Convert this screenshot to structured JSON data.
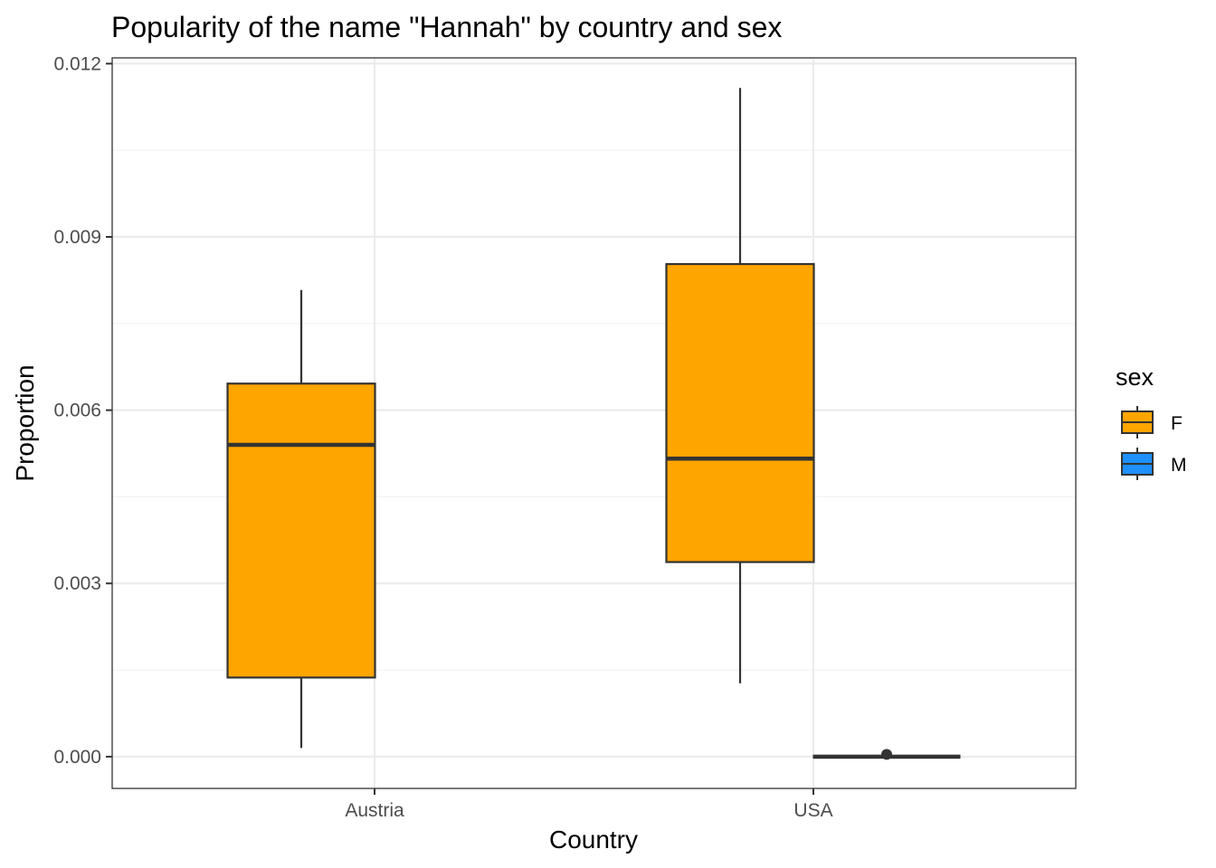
{
  "chart_data": {
    "type": "box",
    "title": "Popularity of the name \"Hannah\" by country and sex",
    "xlabel": "Country",
    "ylabel": "Proportion",
    "categories": [
      "Austria",
      "USA"
    ],
    "ylim": [
      -0.00055,
      0.0121
    ],
    "yticks": [
      0.0,
      0.003,
      0.006,
      0.009,
      0.012
    ],
    "ytick_labels": [
      "0.000",
      "0.003",
      "0.006",
      "0.009",
      "0.012"
    ],
    "grid": true,
    "legend": {
      "title": "sex",
      "position": "right",
      "entries": [
        {
          "label": "F",
          "color": "#FFA500"
        },
        {
          "label": "M",
          "color": "#1E90FF"
        }
      ]
    },
    "series": [
      {
        "name": "F",
        "color": "#FFA500",
        "boxes": [
          {
            "category": "Austria",
            "min": 0.00015,
            "q1": 0.00137,
            "median": 0.0054,
            "q3": 0.00646,
            "max": 0.00808,
            "outliers": []
          },
          {
            "category": "USA",
            "min": 0.00127,
            "q1": 0.00337,
            "median": 0.00516,
            "q3": 0.00853,
            "max": 0.01158,
            "outliers": []
          }
        ]
      },
      {
        "name": "M",
        "color": "#1E90FF",
        "boxes": [
          {
            "category": "USA",
            "min": 0.0,
            "q1": 0.0,
            "median": 0.0,
            "q3": 0.0,
            "max": 0.0,
            "outliers": [
              4e-05
            ]
          }
        ]
      }
    ]
  }
}
